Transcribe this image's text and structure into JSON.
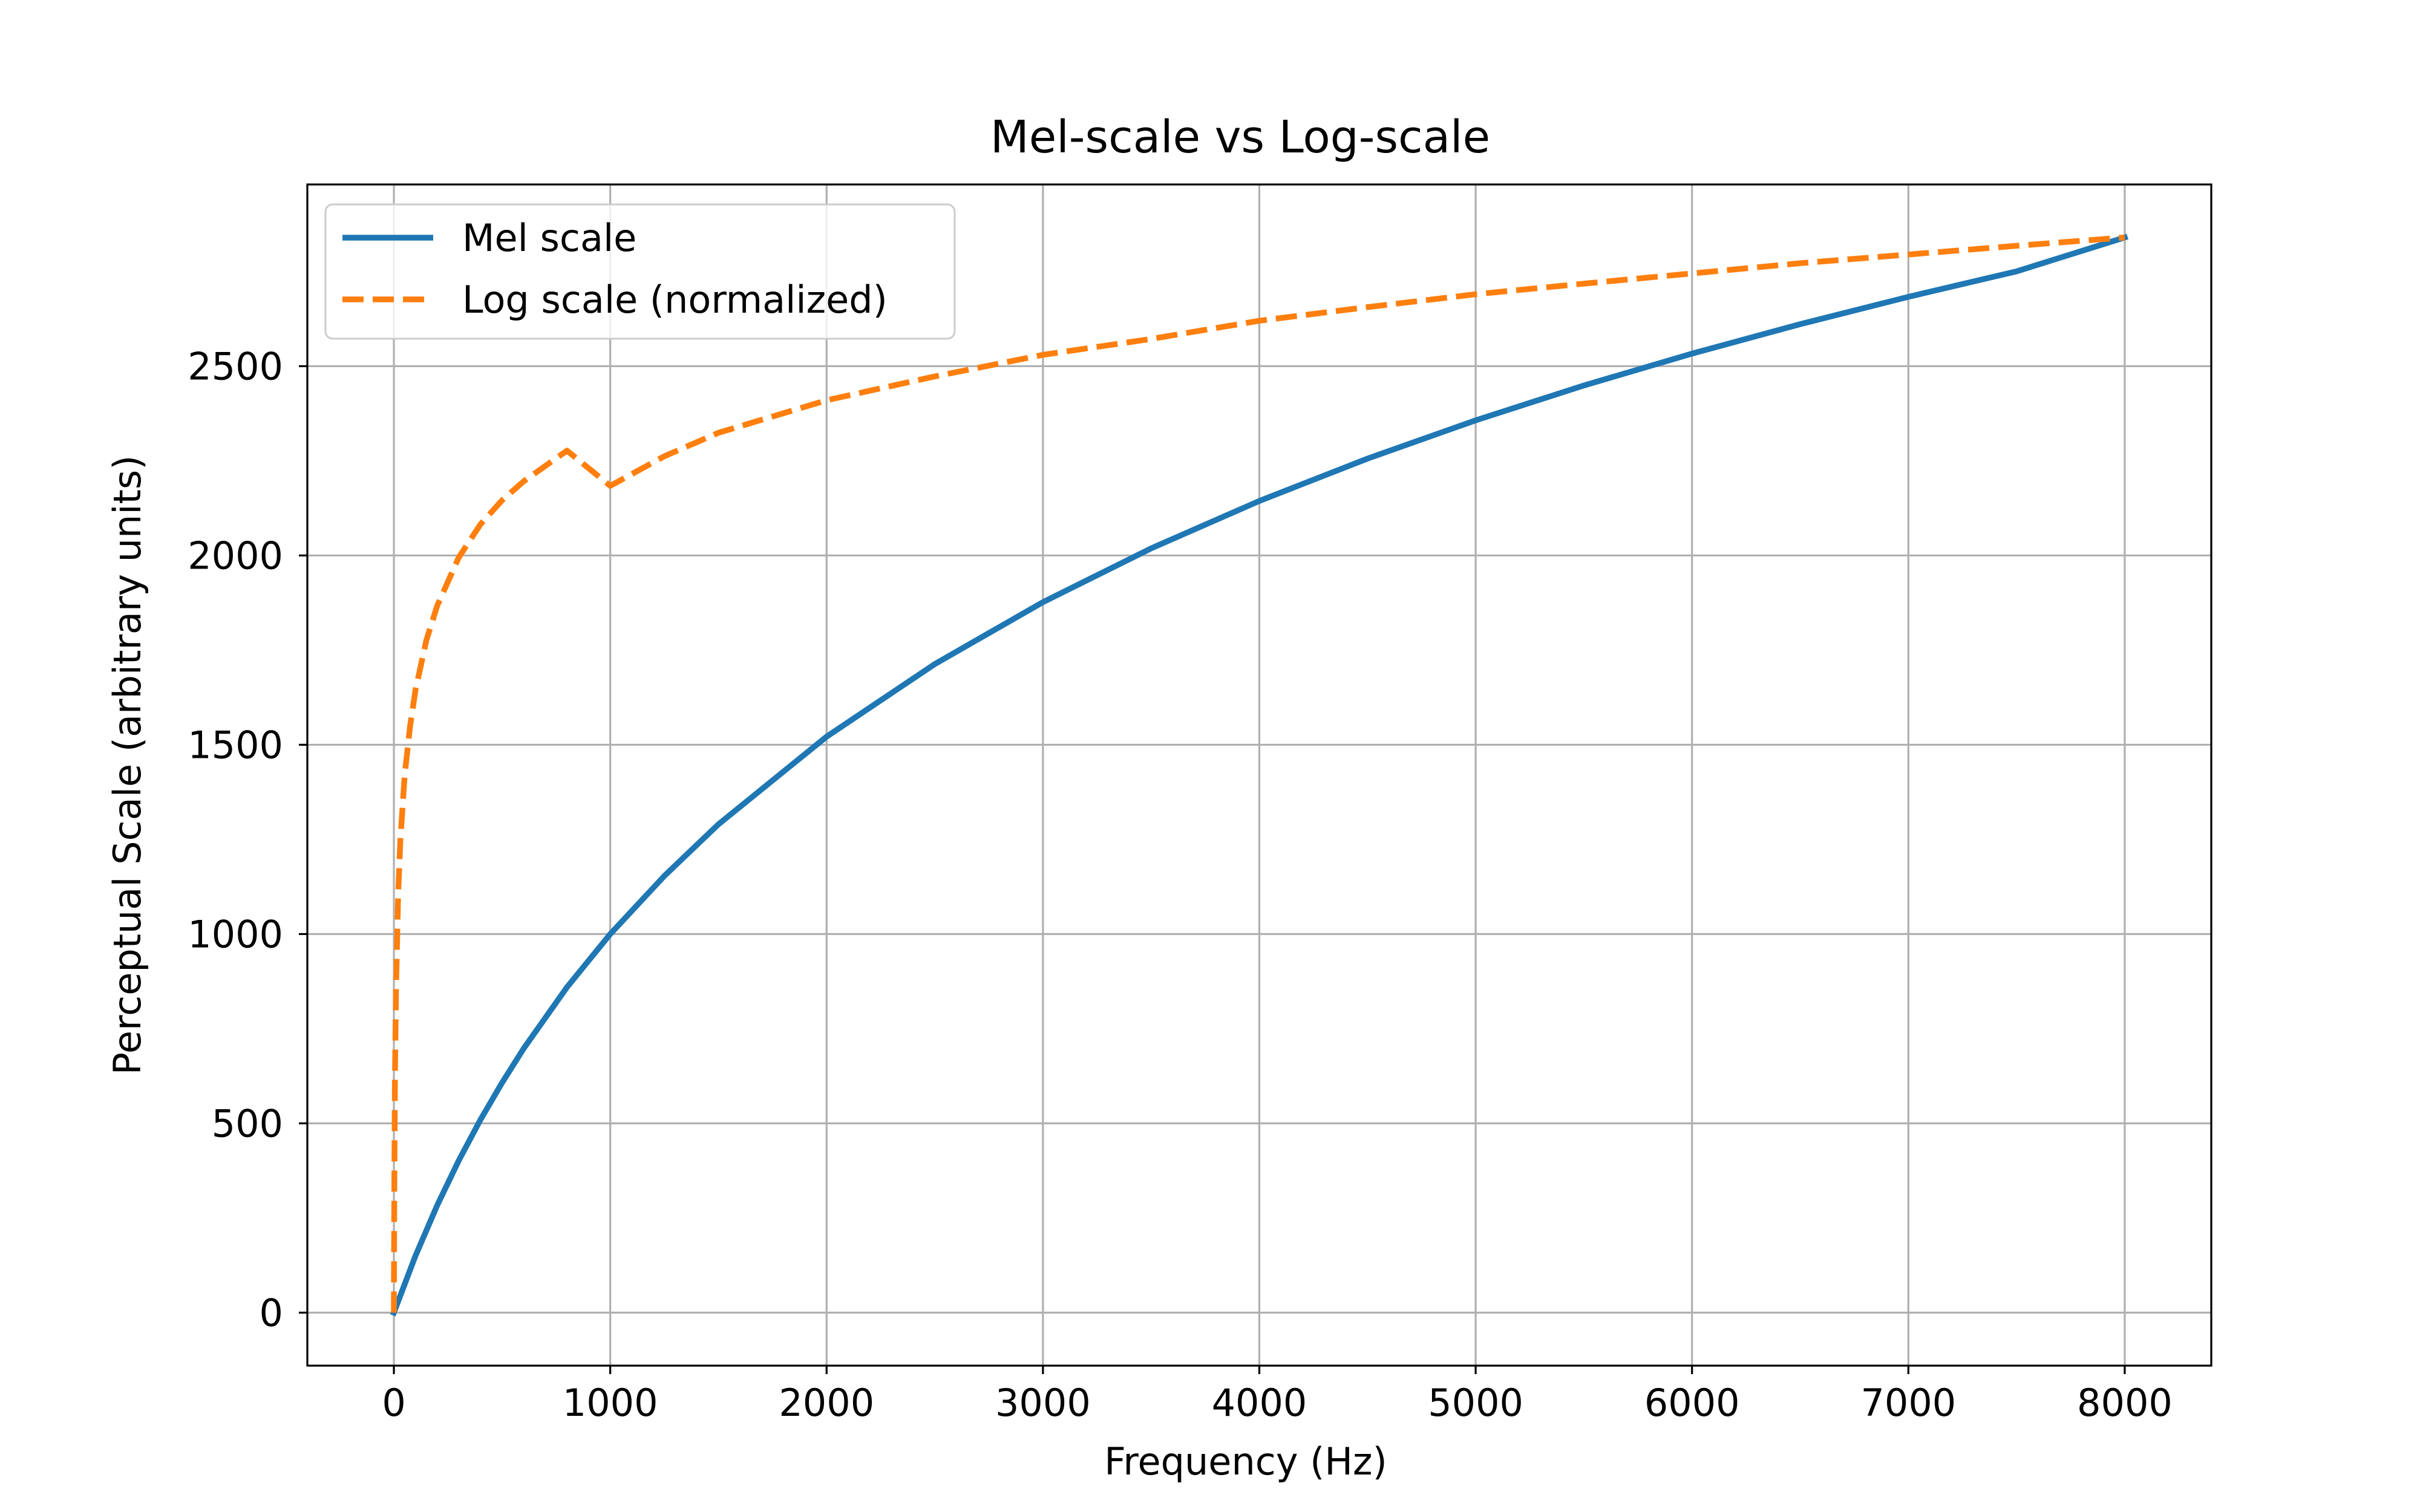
{
  "chart_data": {
    "type": "line",
    "title": "Mel-scale vs Log-scale",
    "xlabel": "Frequency (Hz)",
    "ylabel": "Perceptual Scale (arbitrary units)",
    "xlim": [
      -400,
      8400
    ],
    "ylim": [
      -140,
      2980
    ],
    "xticks": [
      0,
      1000,
      2000,
      3000,
      4000,
      5000,
      6000,
      7000,
      8000
    ],
    "xtick_labels": [
      "0",
      "1000",
      "2000",
      "3000",
      "4000",
      "5000",
      "6000",
      "7000",
      "8000"
    ],
    "yticks": [
      0,
      500,
      1000,
      1500,
      2000,
      2500
    ],
    "ytick_labels": [
      "0",
      "500",
      "1000",
      "1500",
      "2000",
      "2500"
    ],
    "grid": true,
    "legend_position": "upper-left",
    "series": [
      {
        "name": "Mel scale",
        "color": "#1f77b4",
        "style": "solid",
        "x": [
          0,
          100,
          200,
          300,
          400,
          500,
          600,
          800,
          1000,
          1250,
          1500,
          2000,
          2500,
          3000,
          3500,
          4000,
          4500,
          5000,
          5500,
          6000,
          6500,
          7000,
          7500,
          8000
        ],
        "y": [
          0,
          150.5,
          283.2,
          401.9,
          509.4,
          607.4,
          697.7,
          859.4,
          1000,
          1153.5,
          1290,
          1521.4,
          1713.2,
          1876.8,
          2018.8,
          2144,
          2255.9,
          2357,
          2449,
          2533.2,
          2611,
          2683.2,
          2750.5,
          2840
        ]
      },
      {
        "name": "Log scale (normalized)",
        "color": "#ff7f0e",
        "style": "dashed",
        "x": [
          0,
          2,
          5,
          10,
          20,
          30,
          50,
          75,
          100,
          150,
          200,
          300,
          400,
          500,
          600,
          800,
          1000,
          1250,
          1500,
          2000,
          2500,
          3000,
          3500,
          4000,
          4500,
          5000,
          5500,
          6000,
          6500,
          7000,
          7500,
          8000
        ],
        "y": [
          0,
          345,
          620,
          860,
          1110,
          1250,
          1420,
          1550,
          1645,
          1776,
          1867,
          1995,
          2082,
          2146,
          2196,
          2277,
          2184,
          2262,
          2324,
          2410,
          2473,
          2530,
          2572,
          2620,
          2656,
          2690,
          2718,
          2745,
          2772,
          2795,
          2818,
          2840
        ]
      }
    ]
  }
}
